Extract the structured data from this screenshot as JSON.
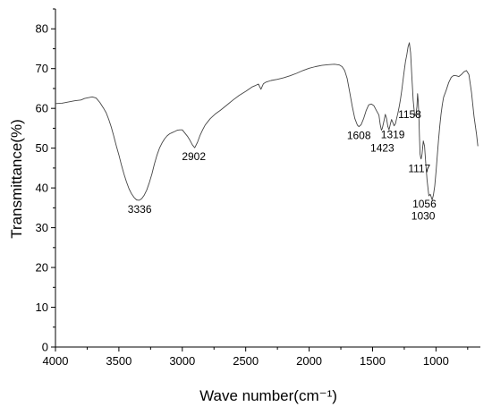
{
  "chart_data": {
    "type": "line",
    "title": "",
    "xlabel": "Wave number(cm⁻¹)",
    "ylabel": "Transmittance(%)",
    "xlim": [
      4000,
      650
    ],
    "ylim": [
      0,
      85
    ],
    "x_reversed": true,
    "grid": false,
    "legend": "none",
    "x_ticks": [
      4000,
      3500,
      3000,
      2500,
      2000,
      1500,
      1000
    ],
    "y_ticks": [
      0,
      10,
      20,
      30,
      40,
      50,
      60,
      70,
      80
    ],
    "line_color": "#444444",
    "series": [
      {
        "x": [
          4000,
          3950,
          3900,
          3850,
          3800,
          3770,
          3740,
          3710,
          3680,
          3650,
          3620,
          3600,
          3580,
          3560,
          3540,
          3520,
          3500,
          3480,
          3460,
          3440,
          3420,
          3400,
          3380,
          3360,
          3340,
          3320,
          3300,
          3280,
          3260,
          3240,
          3220,
          3200,
          3180,
          3160,
          3140,
          3120,
          3100,
          3080,
          3060,
          3040,
          3020,
          3000,
          2980,
          2960,
          2940,
          2920,
          2902,
          2880,
          2860,
          2840,
          2820,
          2800,
          2780,
          2760,
          2740,
          2700,
          2650,
          2600,
          2550,
          2500,
          2450,
          2420,
          2400,
          2380,
          2360,
          2340,
          2300,
          2250,
          2200,
          2150,
          2100,
          2050,
          2000,
          1950,
          1900,
          1850,
          1800,
          1760,
          1740,
          1720,
          1700,
          1680,
          1660,
          1640,
          1620,
          1608,
          1590,
          1570,
          1550,
          1530,
          1510,
          1490,
          1470,
          1450,
          1440,
          1430,
          1423,
          1410,
          1400,
          1390,
          1380,
          1370,
          1360,
          1350,
          1340,
          1330,
          1319,
          1310,
          1300,
          1290,
          1280,
          1270,
          1260,
          1250,
          1240,
          1230,
          1220,
          1210,
          1200,
          1190,
          1180,
          1170,
          1165,
          1158,
          1150,
          1145,
          1140,
          1135,
          1130,
          1125,
          1120,
          1117,
          1110,
          1100,
          1090,
          1080,
          1070,
          1060,
          1056,
          1045,
          1035,
          1030,
          1020,
          1010,
          1000,
          990,
          980,
          970,
          960,
          950,
          940,
          920,
          900,
          880,
          860,
          840,
          820,
          800,
          780,
          760,
          740,
          720,
          700,
          680,
          670
        ],
        "y": [
          61.2,
          61.3,
          61.6,
          61.9,
          62.1,
          62.5,
          62.7,
          62.9,
          62.6,
          61.5,
          60,
          58.9,
          57.2,
          55.3,
          53,
          50.5,
          48.3,
          45.8,
          43.5,
          41.5,
          39.8,
          38.5,
          37.6,
          37,
          36.9,
          37.3,
          38.2,
          39.5,
          41.3,
          43.5,
          46,
          48.2,
          50,
          51.3,
          52.3,
          53.1,
          53.6,
          53.9,
          54.2,
          54.5,
          54.6,
          54.6,
          53.8,
          53,
          52,
          50.8,
          50.1,
          51.5,
          53.2,
          54.6,
          55.8,
          56.6,
          57.4,
          58,
          58.6,
          59.5,
          60.8,
          62.1,
          63.3,
          64.3,
          65.4,
          65.8,
          66.1,
          64.8,
          66.2,
          66.6,
          67,
          67.3,
          67.7,
          68.2,
          68.8,
          69.5,
          70.1,
          70.5,
          70.8,
          71,
          71.1,
          70.9,
          70.5,
          69.5,
          67.5,
          64,
          60.5,
          57.5,
          55.8,
          55.4,
          55.9,
          57.5,
          59.5,
          60.9,
          61.1,
          60.7,
          59.5,
          58.3,
          56,
          54.5,
          55,
          56.8,
          58.5,
          57.5,
          55.5,
          54.6,
          56,
          57.2,
          56.4,
          55.6,
          56.2,
          57.5,
          58.8,
          60.5,
          62.3,
          64.5,
          67,
          69.5,
          71.8,
          73.5,
          75.5,
          76.5,
          74,
          68,
          62,
          58.8,
          58.2,
          58.5,
          60.5,
          63.7,
          62,
          58.5,
          53,
          48.5,
          47.5,
          47.3,
          48.5,
          51.8,
          50.5,
          46,
          42,
          39,
          38,
          38.4,
          37.5,
          37,
          38.2,
          40.5,
          44,
          48,
          52,
          55.5,
          58.5,
          61,
          62.8,
          64.5,
          66.5,
          67.8,
          68.3,
          68.2,
          68,
          68.5,
          69.2,
          69.5,
          68.5,
          64,
          58,
          53.5,
          50.5
        ]
      }
    ],
    "annotations": [
      {
        "text": "3336",
        "x": 3336,
        "y": 36.9
      },
      {
        "text": "2902",
        "x": 2902,
        "y": 50.1
      },
      {
        "text": "1608",
        "x": 1608,
        "y": 55.4
      },
      {
        "text": "1423",
        "x": 1423,
        "y": 54.5
      },
      {
        "text": "1319",
        "x": 1319,
        "y": 55.6
      },
      {
        "text": "1158",
        "x": 1158,
        "y": 58.2
      },
      {
        "text": "1117",
        "x": 1117,
        "y": 47.3
      },
      {
        "text": "1056",
        "x": 1056,
        "y": 38
      },
      {
        "text": "1030",
        "x": 1030,
        "y": 37
      }
    ]
  }
}
